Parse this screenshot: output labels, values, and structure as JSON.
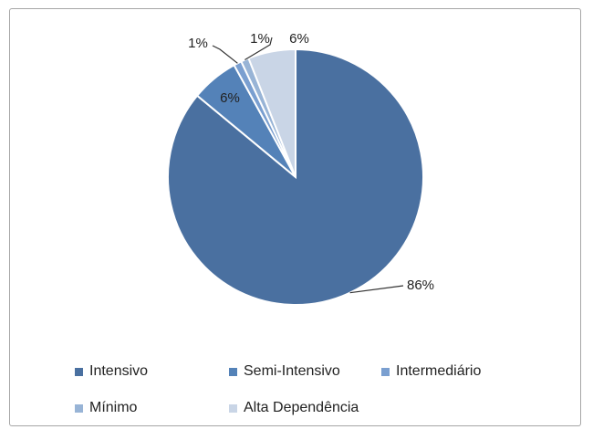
{
  "chart_data": {
    "type": "pie",
    "title": "",
    "legend_position": "bottom",
    "slices": [
      {
        "name": "Intensivo",
        "value": 86,
        "label": "86%",
        "color": "#4a70a0"
      },
      {
        "name": "Semi-Intensivo",
        "value": 6,
        "label": "6%",
        "color": "#5482b8"
      },
      {
        "name": "Intermediário",
        "value": 1,
        "label": "1%",
        "color": "#7a9fd0"
      },
      {
        "name": "Mínimo",
        "value": 1,
        "label": "1%",
        "color": "#98b4d6"
      },
      {
        "name": "Alta Dependência",
        "value": 6,
        "label": "6%",
        "color": "#c9d5e6"
      }
    ]
  }
}
